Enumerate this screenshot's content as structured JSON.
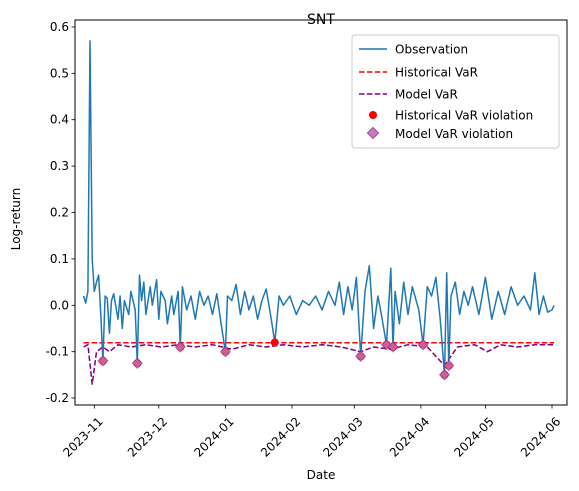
{
  "chart_data": {
    "type": "line",
    "title": "SNT",
    "xlabel": "Date",
    "ylabel": "Log-return",
    "xlim": [
      "2023-10-23",
      "2024-06-08"
    ],
    "ylim": [
      -0.215,
      0.615
    ],
    "y_ticks": [
      -0.2,
      -0.1,
      0.0,
      0.1,
      0.2,
      0.3,
      0.4,
      0.5,
      0.6
    ],
    "x_ticks": [
      "2023-11-01",
      "2023-12-01",
      "2024-01-01",
      "2024-02-01",
      "2024-03-01",
      "2024-04-01",
      "2024-05-01",
      "2024-06-01"
    ],
    "x_tick_labels": [
      "2023-11",
      "2023-12",
      "2024-01",
      "2024-02",
      "2024-03",
      "2024-04",
      "2024-05",
      "2024-06"
    ],
    "legend": {
      "position": "upper-right",
      "entries": [
        "Observation",
        "Historical VaR",
        "Model VaR",
        "Historical VaR violation",
        "Model VaR violation"
      ]
    },
    "grid": false,
    "colors": {
      "observation": "#1f77b4",
      "historical_var": "#ff0000",
      "model_var": "#800080",
      "historical_violation": "#ff0000",
      "model_violation": "#bf7fbf"
    },
    "series": [
      {
        "name": "Observation",
        "style": "solid",
        "points": [
          [
            "2023-10-27",
            0.02
          ],
          [
            "2023-10-28",
            0.005
          ],
          [
            "2023-10-29",
            0.03
          ],
          [
            "2023-10-30",
            0.57
          ],
          [
            "2023-10-31",
            0.1
          ],
          [
            "2023-11-01",
            0.03
          ],
          [
            "2023-11-02",
            0.05
          ],
          [
            "2023-11-03",
            0.065
          ],
          [
            "2023-11-04",
            -0.02
          ],
          [
            "2023-11-05",
            -0.12
          ],
          [
            "2023-11-06",
            0.02
          ],
          [
            "2023-11-07",
            0.015
          ],
          [
            "2023-11-08",
            -0.06
          ],
          [
            "2023-11-09",
            0.01
          ],
          [
            "2023-11-10",
            0.025
          ],
          [
            "2023-11-12",
            -0.03
          ],
          [
            "2023-11-13",
            0.02
          ],
          [
            "2023-11-14",
            -0.05
          ],
          [
            "2023-11-15",
            0.01
          ],
          [
            "2023-11-17",
            -0.02
          ],
          [
            "2023-11-18",
            0.03
          ],
          [
            "2023-11-20",
            -0.01
          ],
          [
            "2023-11-21",
            -0.125
          ],
          [
            "2023-11-22",
            0.065
          ],
          [
            "2023-11-23",
            0.01
          ],
          [
            "2023-11-24",
            0.05
          ],
          [
            "2023-11-25",
            -0.02
          ],
          [
            "2023-11-27",
            0.04
          ],
          [
            "2023-11-28",
            0.0
          ],
          [
            "2023-11-30",
            0.055
          ],
          [
            "2023-12-01",
            -0.03
          ],
          [
            "2023-12-02",
            0.03
          ],
          [
            "2023-12-04",
            0.01
          ],
          [
            "2023-12-05",
            -0.04
          ],
          [
            "2023-12-07",
            0.02
          ],
          [
            "2023-12-08",
            -0.02
          ],
          [
            "2023-12-10",
            0.03
          ],
          [
            "2023-12-11",
            -0.09
          ],
          [
            "2023-12-12",
            0.04
          ],
          [
            "2023-12-14",
            -0.01
          ],
          [
            "2023-12-16",
            0.02
          ],
          [
            "2023-12-18",
            -0.03
          ],
          [
            "2023-12-20",
            0.03
          ],
          [
            "2023-12-22",
            0.0
          ],
          [
            "2023-12-24",
            0.02
          ],
          [
            "2023-12-26",
            -0.02
          ],
          [
            "2023-12-28",
            0.025
          ],
          [
            "2023-12-30",
            -0.04
          ],
          [
            "2024-01-01",
            -0.1
          ],
          [
            "2024-01-02",
            0.02
          ],
          [
            "2024-01-04",
            0.01
          ],
          [
            "2024-01-06",
            0.045
          ],
          [
            "2024-01-08",
            -0.02
          ],
          [
            "2024-01-10",
            0.03
          ],
          [
            "2024-01-12",
            -0.01
          ],
          [
            "2024-01-14",
            0.02
          ],
          [
            "2024-01-16",
            -0.03
          ],
          [
            "2024-01-18",
            0.01
          ],
          [
            "2024-01-20",
            0.035
          ],
          [
            "2024-01-22",
            -0.02
          ],
          [
            "2024-01-24",
            -0.08
          ],
          [
            "2024-01-26",
            0.02
          ],
          [
            "2024-01-28",
            0.0
          ],
          [
            "2024-01-31",
            0.02
          ],
          [
            "2024-02-03",
            -0.02
          ],
          [
            "2024-02-06",
            0.01
          ],
          [
            "2024-02-09",
            0.0
          ],
          [
            "2024-02-12",
            0.02
          ],
          [
            "2024-02-15",
            -0.01
          ],
          [
            "2024-02-18",
            0.03
          ],
          [
            "2024-02-21",
            0.0
          ],
          [
            "2024-02-23",
            0.05
          ],
          [
            "2024-02-25",
            -0.02
          ],
          [
            "2024-02-27",
            0.04
          ],
          [
            "2024-02-29",
            -0.01
          ],
          [
            "2024-03-02",
            0.06
          ],
          [
            "2024-03-04",
            -0.11
          ],
          [
            "2024-03-06",
            0.03
          ],
          [
            "2024-03-08",
            0.085
          ],
          [
            "2024-03-10",
            -0.05
          ],
          [
            "2024-03-12",
            0.02
          ],
          [
            "2024-03-14",
            -0.03
          ],
          [
            "2024-03-16",
            -0.085
          ],
          [
            "2024-03-18",
            0.08
          ],
          [
            "2024-03-19",
            -0.09
          ],
          [
            "2024-03-20",
            0.03
          ],
          [
            "2024-03-22",
            -0.04
          ],
          [
            "2024-03-24",
            0.05
          ],
          [
            "2024-03-26",
            -0.02
          ],
          [
            "2024-03-28",
            0.04
          ],
          [
            "2024-03-31",
            -0.01
          ],
          [
            "2024-04-02",
            -0.085
          ],
          [
            "2024-04-04",
            0.04
          ],
          [
            "2024-04-06",
            0.02
          ],
          [
            "2024-04-08",
            0.06
          ],
          [
            "2024-04-10",
            -0.03
          ],
          [
            "2024-04-12",
            -0.15
          ],
          [
            "2024-04-13",
            0.07
          ],
          [
            "2024-04-14",
            -0.13
          ],
          [
            "2024-04-15",
            0.02
          ],
          [
            "2024-04-17",
            0.05
          ],
          [
            "2024-04-19",
            -0.02
          ],
          [
            "2024-04-21",
            0.03
          ],
          [
            "2024-04-23",
            0.0
          ],
          [
            "2024-04-25",
            0.04
          ],
          [
            "2024-04-28",
            -0.02
          ],
          [
            "2024-05-01",
            0.06
          ],
          [
            "2024-05-04",
            -0.03
          ],
          [
            "2024-05-07",
            0.03
          ],
          [
            "2024-05-10",
            -0.02
          ],
          [
            "2024-05-13",
            0.04
          ],
          [
            "2024-05-16",
            0.0
          ],
          [
            "2024-05-19",
            0.02
          ],
          [
            "2024-05-22",
            -0.01
          ],
          [
            "2024-05-24",
            0.07
          ],
          [
            "2024-05-26",
            -0.02
          ],
          [
            "2024-05-28",
            0.02
          ],
          [
            "2024-05-30",
            -0.015
          ],
          [
            "2024-06-01",
            -0.01
          ],
          [
            "2024-06-02",
            0.0
          ]
        ]
      },
      {
        "name": "Historical VaR",
        "style": "dashed",
        "points": [
          [
            "2023-10-27",
            -0.081
          ],
          [
            "2024-06-02",
            -0.081
          ]
        ]
      },
      {
        "name": "Model VaR",
        "style": "dashed",
        "points": [
          [
            "2023-10-27",
            -0.09
          ],
          [
            "2023-10-29",
            -0.085
          ],
          [
            "2023-10-31",
            -0.17
          ],
          [
            "2023-11-02",
            -0.1
          ],
          [
            "2023-11-05",
            -0.09
          ],
          [
            "2023-11-08",
            -0.1
          ],
          [
            "2023-11-12",
            -0.085
          ],
          [
            "2023-11-18",
            -0.09
          ],
          [
            "2023-11-25",
            -0.085
          ],
          [
            "2023-12-02",
            -0.09
          ],
          [
            "2023-12-10",
            -0.085
          ],
          [
            "2023-12-18",
            -0.09
          ],
          [
            "2023-12-26",
            -0.085
          ],
          [
            "2024-01-04",
            -0.095
          ],
          [
            "2024-01-12",
            -0.085
          ],
          [
            "2024-01-20",
            -0.09
          ],
          [
            "2024-01-28",
            -0.085
          ],
          [
            "2024-02-06",
            -0.09
          ],
          [
            "2024-02-15",
            -0.085
          ],
          [
            "2024-02-24",
            -0.09
          ],
          [
            "2024-03-04",
            -0.1
          ],
          [
            "2024-03-10",
            -0.09
          ],
          [
            "2024-03-18",
            -0.095
          ],
          [
            "2024-03-26",
            -0.085
          ],
          [
            "2024-04-04",
            -0.09
          ],
          [
            "2024-04-12",
            -0.13
          ],
          [
            "2024-04-18",
            -0.09
          ],
          [
            "2024-04-26",
            -0.085
          ],
          [
            "2024-05-02",
            -0.1
          ],
          [
            "2024-05-08",
            -0.085
          ],
          [
            "2024-05-16",
            -0.09
          ],
          [
            "2024-05-24",
            -0.085
          ],
          [
            "2024-06-02",
            -0.085
          ]
        ]
      }
    ],
    "historical_violations": [
      [
        "2023-11-05",
        -0.12
      ],
      [
        "2023-11-21",
        -0.125
      ],
      [
        "2023-12-11",
        -0.09
      ],
      [
        "2024-01-01",
        -0.1
      ],
      [
        "2024-01-24",
        -0.08
      ],
      [
        "2024-03-04",
        -0.11
      ],
      [
        "2024-03-16",
        -0.085
      ],
      [
        "2024-03-19",
        -0.09
      ],
      [
        "2024-04-02",
        -0.085
      ],
      [
        "2024-04-12",
        -0.15
      ],
      [
        "2024-04-14",
        -0.13
      ]
    ],
    "model_violations": [
      [
        "2023-11-05",
        -0.12
      ],
      [
        "2023-11-21",
        -0.125
      ],
      [
        "2023-12-11",
        -0.09
      ],
      [
        "2024-01-01",
        -0.1
      ],
      [
        "2024-03-04",
        -0.11
      ],
      [
        "2024-03-16",
        -0.085
      ],
      [
        "2024-03-19",
        -0.09
      ],
      [
        "2024-04-02",
        -0.085
      ],
      [
        "2024-04-12",
        -0.15
      ],
      [
        "2024-04-14",
        -0.13
      ]
    ]
  }
}
